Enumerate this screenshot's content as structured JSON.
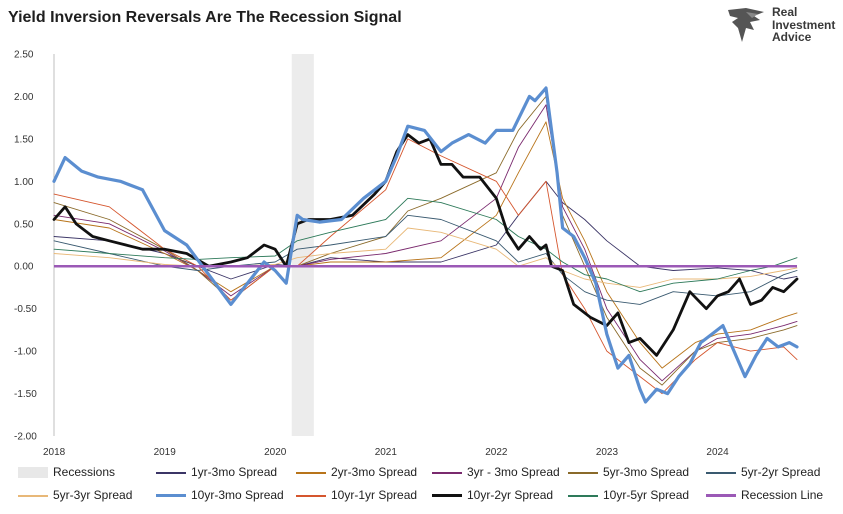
{
  "title": "Yield Inversion Reversals Are The Recession Signal",
  "logo": {
    "line1": "Real",
    "line2": "Investment",
    "line3": "Advice"
  },
  "chart_data": {
    "type": "line",
    "title": "Yield Inversion Reversals Are The Recession Signal",
    "xlabel": "",
    "ylabel": "",
    "ylim": [
      -2.0,
      2.5
    ],
    "xlim": [
      2018.0,
      2024.72
    ],
    "y_ticks": [
      "2.50",
      "2.00",
      "1.50",
      "1.00",
      "0.50",
      "0.00",
      "-0.50",
      "-1.00",
      "-1.50",
      "-2.00"
    ],
    "y_tick_values": [
      2.5,
      2.0,
      1.5,
      1.0,
      0.5,
      0.0,
      -0.5,
      -1.0,
      -1.5,
      -2.0
    ],
    "x_ticks": [
      "2018",
      "2019",
      "2020",
      "2021",
      "2022",
      "2023",
      "2024"
    ],
    "x_tick_values": [
      2018,
      2019,
      2020,
      2021,
      2022,
      2023,
      2024
    ],
    "recession_band": [
      2020.15,
      2020.35
    ],
    "recession_line": 0.0,
    "series": [
      {
        "name": "1yr-3mo Spread",
        "color": "#3b3566",
        "width": 0.9,
        "x": [
          2018.0,
          2018.5,
          2019.0,
          2019.3,
          2019.6,
          2020.0,
          2020.2,
          2020.5,
          2021.0,
          2021.5,
          2022.0,
          2022.2,
          2022.45,
          2022.6,
          2022.8,
          2023.0,
          2023.3,
          2023.6,
          2024.0,
          2024.3,
          2024.6,
          2024.72
        ],
        "y": [
          0.35,
          0.3,
          0.15,
          0.0,
          -0.15,
          0.02,
          0.0,
          0.1,
          0.05,
          0.05,
          0.25,
          0.6,
          1.0,
          0.75,
          0.55,
          0.3,
          0.0,
          -0.05,
          -0.02,
          -0.05,
          -0.15,
          -0.12
        ]
      },
      {
        "name": "2yr-3mo Spread",
        "color": "#b8741a",
        "width": 0.9,
        "x": [
          2018.0,
          2018.5,
          2019.0,
          2019.3,
          2019.6,
          2020.0,
          2020.2,
          2020.5,
          2021.0,
          2021.5,
          2022.0,
          2022.2,
          2022.45,
          2022.6,
          2022.8,
          2023.0,
          2023.3,
          2023.5,
          2023.8,
          2024.0,
          2024.3,
          2024.6,
          2024.72
        ],
        "y": [
          0.55,
          0.45,
          0.15,
          -0.05,
          -0.3,
          0.0,
          0.0,
          0.05,
          0.05,
          0.1,
          0.6,
          1.1,
          1.7,
          0.8,
          0.3,
          -0.3,
          -0.9,
          -1.2,
          -0.9,
          -0.8,
          -0.75,
          -0.6,
          -0.55
        ]
      },
      {
        "name": "3yr - 3mo Spread",
        "color": "#7a2a6e",
        "width": 0.9,
        "x": [
          2018.0,
          2018.5,
          2019.0,
          2019.3,
          2019.6,
          2020.0,
          2020.2,
          2020.5,
          2021.0,
          2021.5,
          2022.0,
          2022.2,
          2022.45,
          2022.6,
          2022.8,
          2023.0,
          2023.3,
          2023.5,
          2023.8,
          2024.0,
          2024.3,
          2024.6,
          2024.72
        ],
        "y": [
          0.6,
          0.5,
          0.18,
          -0.05,
          -0.35,
          0.0,
          0.0,
          0.08,
          0.15,
          0.3,
          0.8,
          1.4,
          1.9,
          0.7,
          0.2,
          -0.5,
          -1.1,
          -1.35,
          -1.0,
          -0.85,
          -0.8,
          -0.7,
          -0.65
        ]
      },
      {
        "name": "5yr-3mo Spread",
        "color": "#8a6a2a",
        "width": 0.9,
        "x": [
          2018.0,
          2018.5,
          2019.0,
          2019.3,
          2019.6,
          2020.0,
          2020.2,
          2020.5,
          2021.0,
          2021.2,
          2021.5,
          2022.0,
          2022.2,
          2022.45,
          2022.6,
          2022.8,
          2023.0,
          2023.3,
          2023.5,
          2023.8,
          2024.0,
          2024.3,
          2024.6,
          2024.72
        ],
        "y": [
          0.75,
          0.55,
          0.2,
          -0.05,
          -0.4,
          0.0,
          0.0,
          0.15,
          0.35,
          0.65,
          0.8,
          1.1,
          1.6,
          2.0,
          0.6,
          0.0,
          -0.6,
          -1.2,
          -1.4,
          -1.0,
          -0.9,
          -0.85,
          -0.75,
          -0.7
        ]
      },
      {
        "name": "5yr-2yr Spread",
        "color": "#3a5a70",
        "width": 0.9,
        "x": [
          2018.0,
          2018.5,
          2019.0,
          2019.3,
          2019.6,
          2020.0,
          2020.2,
          2020.5,
          2021.0,
          2021.2,
          2021.5,
          2022.0,
          2022.2,
          2022.45,
          2022.6,
          2022.8,
          2023.0,
          2023.3,
          2023.6,
          2024.0,
          2024.3,
          2024.6,
          2024.72
        ],
        "y": [
          0.3,
          0.15,
          0.0,
          -0.05,
          0.0,
          0.05,
          0.2,
          0.25,
          0.35,
          0.6,
          0.55,
          0.3,
          0.05,
          0.15,
          -0.1,
          -0.3,
          -0.4,
          -0.45,
          -0.3,
          -0.35,
          -0.3,
          -0.1,
          -0.05
        ]
      },
      {
        "name": "5yr-3yr Spread",
        "color": "#e8b878",
        "width": 0.9,
        "x": [
          2018.0,
          2018.5,
          2019.0,
          2019.3,
          2019.6,
          2020.0,
          2020.2,
          2020.5,
          2021.0,
          2021.2,
          2021.5,
          2022.0,
          2022.2,
          2022.45,
          2022.6,
          2022.8,
          2023.0,
          2023.3,
          2023.6,
          2024.0,
          2024.3,
          2024.6,
          2024.72
        ],
        "y": [
          0.15,
          0.1,
          0.02,
          0.0,
          0.0,
          0.02,
          0.1,
          0.15,
          0.2,
          0.45,
          0.4,
          0.2,
          0.0,
          0.1,
          -0.05,
          -0.15,
          -0.2,
          -0.25,
          -0.15,
          -0.15,
          -0.12,
          -0.05,
          -0.02
        ]
      },
      {
        "name": "10yr-3mo Spread",
        "color": "#5b8ed0",
        "width": 3.2,
        "x": [
          2018.0,
          2018.1,
          2018.25,
          2018.4,
          2018.6,
          2018.8,
          2019.0,
          2019.2,
          2019.4,
          2019.6,
          2019.75,
          2019.9,
          2020.0,
          2020.1,
          2020.2,
          2020.25,
          2020.4,
          2020.6,
          2020.8,
          2021.0,
          2021.1,
          2021.2,
          2021.35,
          2021.5,
          2021.6,
          2021.75,
          2021.9,
          2022.0,
          2022.15,
          2022.3,
          2022.35,
          2022.45,
          2022.55,
          2022.6,
          2022.7,
          2022.8,
          2022.9,
          2023.0,
          2023.1,
          2023.2,
          2023.3,
          2023.35,
          2023.45,
          2023.55,
          2023.65,
          2023.75,
          2023.85,
          2023.95,
          2024.05,
          2024.15,
          2024.25,
          2024.35,
          2024.45,
          2024.55,
          2024.65,
          2024.72
        ],
        "y": [
          1.0,
          1.28,
          1.12,
          1.05,
          1.0,
          0.9,
          0.42,
          0.25,
          -0.1,
          -0.45,
          -0.2,
          0.05,
          -0.05,
          -0.2,
          0.6,
          0.55,
          0.52,
          0.55,
          0.8,
          1.0,
          1.3,
          1.65,
          1.6,
          1.35,
          1.45,
          1.55,
          1.45,
          1.6,
          1.6,
          2.0,
          1.95,
          2.1,
          1.1,
          0.45,
          0.35,
          0.1,
          -0.2,
          -0.8,
          -1.2,
          -1.05,
          -1.45,
          -1.6,
          -1.45,
          -1.5,
          -1.3,
          -1.15,
          -0.9,
          -0.8,
          -0.7,
          -1.0,
          -1.3,
          -1.05,
          -0.85,
          -0.95,
          -0.9,
          -0.95
        ]
      },
      {
        "name": "10yr-1yr Spread",
        "color": "#d5562e",
        "width": 0.9,
        "x": [
          2018.0,
          2018.5,
          2019.0,
          2019.3,
          2019.6,
          2020.0,
          2020.2,
          2020.5,
          2021.0,
          2021.2,
          2021.5,
          2022.0,
          2022.2,
          2022.45,
          2022.6,
          2022.8,
          2023.0,
          2023.3,
          2023.5,
          2023.8,
          2024.0,
          2024.3,
          2024.6,
          2024.72
        ],
        "y": [
          0.85,
          0.7,
          0.2,
          0.0,
          -0.4,
          0.0,
          0.0,
          0.35,
          0.9,
          1.5,
          1.3,
          1.0,
          0.6,
          1.0,
          -0.1,
          -0.5,
          -1.0,
          -1.3,
          -1.5,
          -1.1,
          -0.9,
          -1.0,
          -0.95,
          -1.1
        ]
      },
      {
        "name": "10yr-2yr Spread",
        "color": "#111111",
        "width": 2.8,
        "x": [
          2018.0,
          2018.1,
          2018.2,
          2018.35,
          2018.5,
          2018.65,
          2018.8,
          2019.0,
          2019.2,
          2019.4,
          2019.6,
          2019.75,
          2019.9,
          2020.0,
          2020.1,
          2020.2,
          2020.3,
          2020.5,
          2020.7,
          2020.9,
          2021.0,
          2021.1,
          2021.2,
          2021.3,
          2021.4,
          2021.5,
          2021.6,
          2021.7,
          2021.85,
          2022.0,
          2022.1,
          2022.2,
          2022.3,
          2022.4,
          2022.45,
          2022.5,
          2022.6,
          2022.7,
          2022.85,
          2023.0,
          2023.1,
          2023.2,
          2023.3,
          2023.45,
          2023.6,
          2023.75,
          2023.9,
          2024.0,
          2024.1,
          2024.2,
          2024.3,
          2024.4,
          2024.5,
          2024.6,
          2024.72
        ],
        "y": [
          0.55,
          0.7,
          0.5,
          0.35,
          0.3,
          0.25,
          0.2,
          0.2,
          0.15,
          0.0,
          0.05,
          0.1,
          0.25,
          0.2,
          0.0,
          0.5,
          0.55,
          0.55,
          0.6,
          0.85,
          1.0,
          1.35,
          1.55,
          1.45,
          1.5,
          1.2,
          1.2,
          1.05,
          1.05,
          0.8,
          0.4,
          0.2,
          0.35,
          0.2,
          0.25,
          0.0,
          -0.05,
          -0.45,
          -0.6,
          -0.7,
          -0.55,
          -0.9,
          -0.85,
          -1.05,
          -0.75,
          -0.3,
          -0.5,
          -0.35,
          -0.3,
          -0.15,
          -0.45,
          -0.4,
          -0.25,
          -0.3,
          -0.15
        ]
      },
      {
        "name": "10yr-5yr Spread",
        "color": "#2e7a5a",
        "width": 0.9,
        "x": [
          2018.0,
          2018.5,
          2019.0,
          2019.3,
          2019.6,
          2020.0,
          2020.2,
          2020.5,
          2021.0,
          2021.2,
          2021.5,
          2022.0,
          2022.2,
          2022.45,
          2022.6,
          2022.8,
          2023.0,
          2023.3,
          2023.6,
          2024.0,
          2024.3,
          2024.5,
          2024.72
        ],
        "y": [
          0.2,
          0.15,
          0.1,
          0.08,
          0.1,
          0.12,
          0.3,
          0.4,
          0.55,
          0.8,
          0.75,
          0.55,
          0.35,
          0.2,
          0.05,
          -0.1,
          -0.15,
          -0.3,
          -0.2,
          -0.15,
          -0.05,
          0.0,
          0.1
        ]
      }
    ]
  },
  "legend": {
    "items": [
      {
        "label": "Recessions",
        "kind": "box",
        "color": "#e8e8e8"
      },
      {
        "label": "1yr-3mo Spread",
        "kind": "line",
        "color": "#3b3566",
        "thick": false
      },
      {
        "label": "2yr-3mo Spread",
        "kind": "line",
        "color": "#b8741a",
        "thick": false
      },
      {
        "label": "3yr - 3mo Spread",
        "kind": "line",
        "color": "#7a2a6e",
        "thick": false
      },
      {
        "label": "5yr-3mo Spread",
        "kind": "line",
        "color": "#8a6a2a",
        "thick": false
      },
      {
        "label": "5yr-2yr Spread",
        "kind": "line",
        "color": "#3a5a70",
        "thick": false
      },
      {
        "label": "5yr-3yr Spread",
        "kind": "line",
        "color": "#e8b878",
        "thick": false
      },
      {
        "label": "10yr-3mo Spread",
        "kind": "line",
        "color": "#5b8ed0",
        "thick": true
      },
      {
        "label": "10yr-1yr Spread",
        "kind": "line",
        "color": "#d5562e",
        "thick": false
      },
      {
        "label": "10yr-2yr Spread",
        "kind": "line",
        "color": "#111111",
        "thick": true
      },
      {
        "label": "10yr-5yr Spread",
        "kind": "line",
        "color": "#2e7a5a",
        "thick": false
      },
      {
        "label": "Recession Line",
        "kind": "line",
        "color": "#9b59b6",
        "thick": true
      }
    ]
  },
  "colors": {
    "recession_band": "#ececec",
    "recession_line": "#9b59b6",
    "axis": "#bfbfbf"
  }
}
